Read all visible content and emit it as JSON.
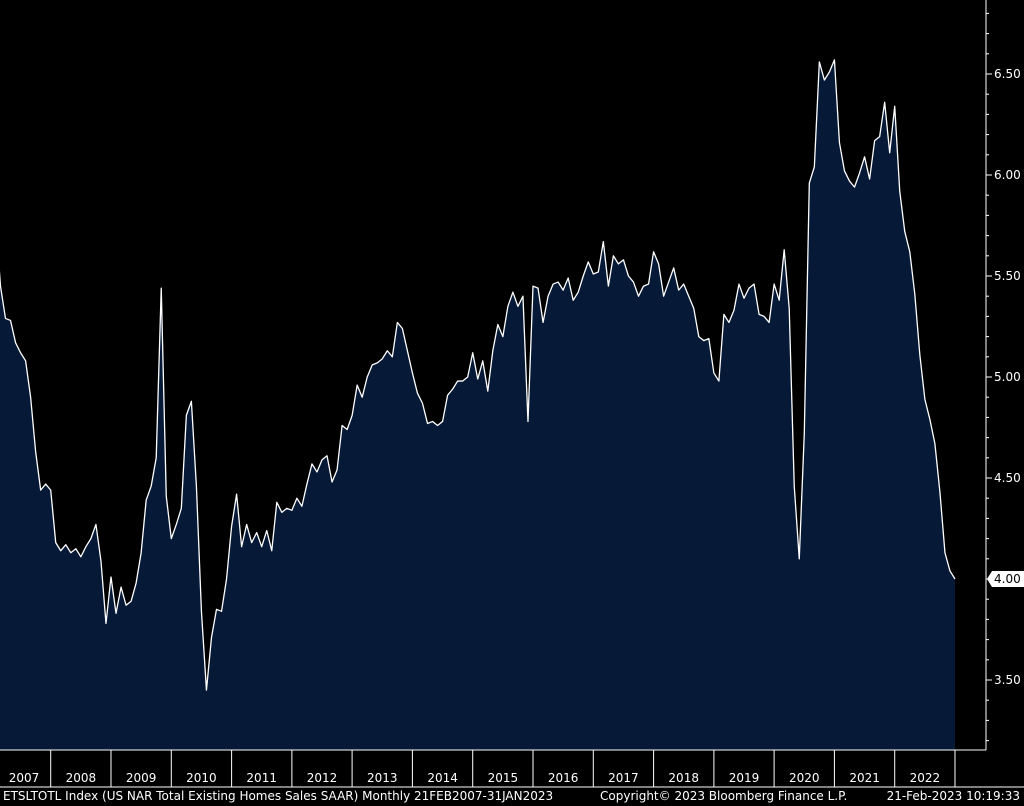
{
  "colors": {
    "background": "#000000",
    "area_fill": "#061a38",
    "line": "#ffffff",
    "axis": "#ffffff",
    "last_value_bg": "#ffffff"
  },
  "footer": {
    "source": "ETSLTOTL Index (US NAR Total Existing Homes Sales SAAR)  Monthly 21FEB2007-31JAN2023",
    "copyright": "Copyright© 2023 Bloomberg Finance L.P.",
    "timestamp": "21-Feb-2023 10:19:33"
  },
  "chart_data": {
    "type": "area",
    "title": "",
    "xlabel": "",
    "ylabel": "",
    "y_axis_position": "right",
    "ylim": [
      3.15,
      6.85
    ],
    "y_ticks": [
      "3.50",
      "4.00",
      "4.50",
      "5.00",
      "5.50",
      "6.00",
      "6.50"
    ],
    "x_ticks": [
      "2007",
      "2008",
      "2009",
      "2010",
      "2011",
      "2012",
      "2013",
      "2014",
      "2015",
      "2016",
      "2017",
      "2018",
      "2019",
      "2020",
      "2021",
      "2022"
    ],
    "last_value_label": "4.00",
    "grid": false,
    "series": [
      {
        "frequency": "monthly",
        "start": "2007-02",
        "end": "2023-01",
        "values": [
          5.79,
          5.45,
          5.29,
          5.28,
          5.17,
          5.12,
          5.08,
          4.9,
          4.63,
          4.44,
          4.47,
          4.44,
          4.18,
          4.14,
          4.17,
          4.13,
          4.15,
          4.11,
          4.16,
          4.2,
          4.27,
          4.09,
          3.78,
          4.01,
          3.83,
          3.96,
          3.87,
          3.89,
          3.98,
          4.13,
          4.39,
          4.46,
          4.6,
          5.44,
          4.41,
          4.2,
          4.27,
          4.35,
          4.81,
          4.88,
          4.46,
          3.84,
          3.45,
          3.71,
          3.85,
          3.84,
          4.0,
          4.26,
          4.42,
          4.16,
          4.27,
          4.18,
          4.23,
          4.16,
          4.24,
          4.14,
          4.38,
          4.33,
          4.35,
          4.34,
          4.4,
          4.36,
          4.47,
          4.57,
          4.53,
          4.59,
          4.61,
          4.48,
          4.54,
          4.76,
          4.74,
          4.81,
          4.96,
          4.9,
          5.0,
          5.06,
          5.07,
          5.09,
          5.13,
          5.1,
          5.27,
          5.24,
          5.13,
          5.02,
          4.92,
          4.87,
          4.77,
          4.78,
          4.76,
          4.78,
          4.91,
          4.94,
          4.98,
          4.98,
          5.0,
          5.12,
          4.99,
          5.08,
          4.93,
          5.13,
          5.26,
          5.2,
          5.35,
          5.42,
          5.35,
          5.4,
          4.78,
          5.45,
          5.44,
          5.27,
          5.4,
          5.46,
          5.47,
          5.43,
          5.49,
          5.38,
          5.42,
          5.5,
          5.57,
          5.51,
          5.52,
          5.67,
          5.45,
          5.6,
          5.56,
          5.58,
          5.5,
          5.47,
          5.4,
          5.45,
          5.46,
          5.62,
          5.56,
          5.4,
          5.47,
          5.54,
          5.43,
          5.46,
          5.4,
          5.34,
          5.2,
          5.18,
          5.19,
          5.02,
          4.98,
          5.31,
          5.27,
          5.33,
          5.46,
          5.39,
          5.44,
          5.46,
          5.31,
          5.3,
          5.27,
          5.46,
          5.38,
          5.63,
          5.34,
          4.46,
          4.1,
          4.72,
          5.96,
          6.04,
          6.56,
          6.47,
          6.51,
          6.57,
          6.16,
          6.02,
          5.97,
          5.94,
          6.01,
          6.09,
          5.98,
          6.17,
          6.19,
          6.36,
          6.11,
          6.34,
          5.92,
          5.72,
          5.62,
          5.41,
          5.11,
          4.89,
          4.79,
          4.67,
          4.43,
          4.13,
          4.04,
          4.0
        ]
      }
    ]
  }
}
